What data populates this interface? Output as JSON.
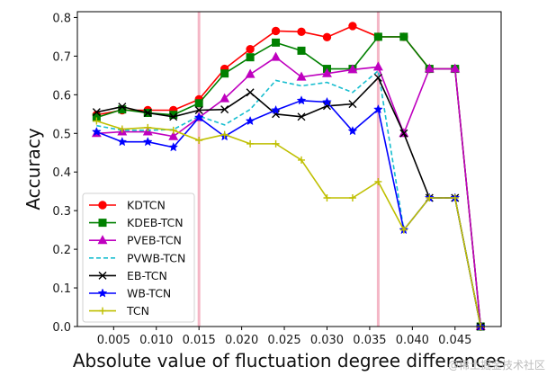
{
  "chart_data": {
    "type": "line",
    "title": "",
    "xlabel": "Absolute value of fluctuation degree differences",
    "ylabel": "Accuracy",
    "xlim": [
      0.00075,
      0.0504
    ],
    "ylim": [
      0,
      0.815
    ],
    "xticks": [
      0.005,
      0.01,
      0.015,
      0.02,
      0.025,
      0.03,
      0.035,
      0.04,
      0.045
    ],
    "xtick_labels": [
      "0.005",
      "0.010",
      "0.015",
      "0.020",
      "0.025",
      "0.030",
      "0.035",
      "0.040",
      "0.045"
    ],
    "yticks": [
      0.0,
      0.1,
      0.2,
      0.3,
      0.4,
      0.5,
      0.6,
      0.7,
      0.8
    ],
    "ytick_labels": [
      "0.0",
      "0.1",
      "0.2",
      "0.3",
      "0.4",
      "0.5",
      "0.6",
      "0.7",
      "0.8"
    ],
    "grid": false,
    "legend_position": "lower-left",
    "vertical_lines": [
      {
        "x": 0.015,
        "color": "#f4b6c6"
      },
      {
        "x": 0.036,
        "color": "#f4b6c6"
      }
    ],
    "x": [
      0.003,
      0.006,
      0.009,
      0.012,
      0.015,
      0.018,
      0.021,
      0.024,
      0.027,
      0.03,
      0.033,
      0.036,
      0.039,
      0.042,
      0.045,
      0.048
    ],
    "series": [
      {
        "name": "KDTCN",
        "color": "#ff0000",
        "marker": "circle",
        "dash": false,
        "values": [
          0.548,
          0.56,
          0.56,
          0.56,
          0.588,
          0.667,
          0.718,
          0.765,
          0.763,
          0.749,
          0.778,
          0.75,
          0.75,
          0.667,
          0.667,
          0.0
        ]
      },
      {
        "name": "KDEB-TCN",
        "color": "#008000",
        "marker": "square",
        "dash": false,
        "values": [
          0.541,
          0.562,
          0.553,
          0.548,
          0.578,
          0.655,
          0.697,
          0.735,
          0.714,
          0.667,
          0.667,
          0.75,
          0.75,
          0.667,
          0.667,
          0.0
        ]
      },
      {
        "name": "PVEB-TCN",
        "color": "#bf00bf",
        "marker": "triangle",
        "dash": false,
        "values": [
          0.5,
          0.504,
          0.504,
          0.492,
          0.541,
          0.59,
          0.653,
          0.697,
          0.646,
          0.655,
          0.665,
          0.672,
          0.5,
          0.667,
          0.667,
          0.0
        ]
      },
      {
        "name": "PVWB-TCN",
        "color": "#17becf",
        "marker": "none",
        "dash": true,
        "values": [
          0.52,
          0.508,
          0.508,
          0.51,
          0.545,
          0.522,
          0.562,
          0.637,
          0.623,
          0.632,
          0.606,
          0.662,
          0.25,
          0.333,
          0.333,
          0.0
        ]
      },
      {
        "name": "EB-TCN",
        "color": "#000000",
        "marker": "x",
        "dash": false,
        "values": [
          0.555,
          0.569,
          0.553,
          0.543,
          0.56,
          0.562,
          0.606,
          0.55,
          0.543,
          0.571,
          0.576,
          0.644,
          0.5,
          0.333,
          0.333,
          0.0
        ]
      },
      {
        "name": "WB-TCN",
        "color": "#0000ff",
        "marker": "star",
        "dash": false,
        "values": [
          0.504,
          0.478,
          0.478,
          0.464,
          0.541,
          0.492,
          0.532,
          0.56,
          0.585,
          0.581,
          0.506,
          0.562,
          0.25,
          0.333,
          0.333,
          0.0
        ]
      },
      {
        "name": "TCN",
        "color": "#bfbf00",
        "marker": "plus",
        "dash": false,
        "values": [
          0.532,
          0.511,
          0.515,
          0.508,
          0.482,
          0.497,
          0.473,
          0.473,
          0.431,
          0.333,
          0.333,
          0.375,
          0.25,
          0.333,
          0.333,
          0.0
        ]
      }
    ]
  },
  "watermark": "@稀土掘金技术社区"
}
